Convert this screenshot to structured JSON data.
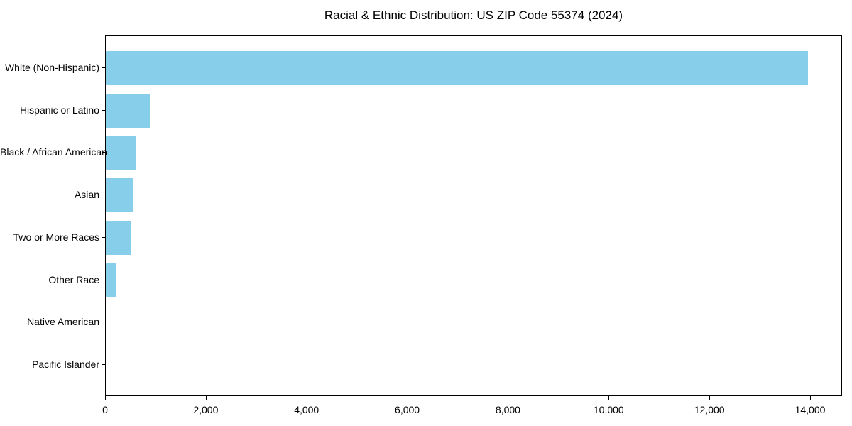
{
  "figure": {
    "background": "#ffffff"
  },
  "chart_data": {
    "type": "bar",
    "orientation": "horizontal",
    "title": "Racial & Ethnic Distribution: US ZIP Code 55374 (2024)",
    "categories": [
      "White (Non-Hispanic)",
      "Hispanic or Latino",
      "Black / African American",
      "Asian",
      "Two or More Races",
      "Other Race",
      "Native American",
      "Pacific Islander"
    ],
    "values": [
      13940,
      880,
      600,
      545,
      510,
      200,
      0,
      0
    ],
    "xlabel": "",
    "ylabel": "",
    "xlim": [
      0,
      14634
    ],
    "xticks": [
      0,
      2000,
      4000,
      6000,
      8000,
      10000,
      12000,
      14000
    ],
    "xtick_labels": [
      "0",
      "2,000",
      "4,000",
      "6,000",
      "8,000",
      "10,000",
      "12,000",
      "14,000"
    ],
    "bar_color": "#87CEEB",
    "axis_color": "#000000",
    "text_color": "#000000",
    "grid": false,
    "legend": null
  }
}
